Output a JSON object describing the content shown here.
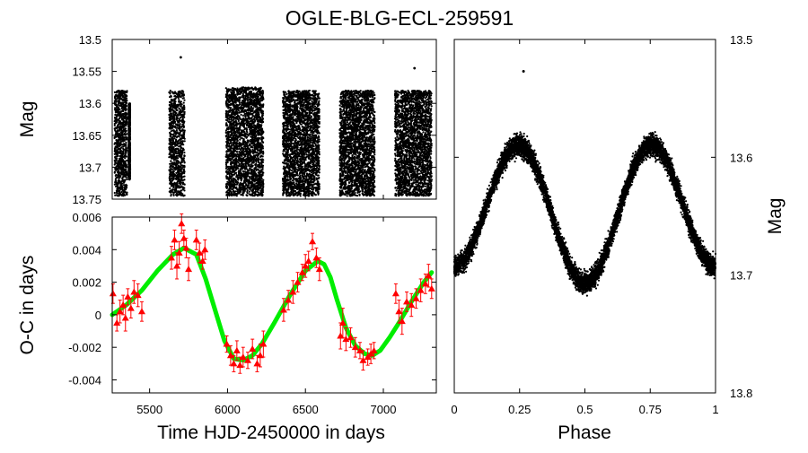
{
  "title": "OGLE-BLG-ECL-259591",
  "colors": {
    "data": "#000000",
    "oc_points": "#ff0000",
    "fit": "#00ee00",
    "axes": "#000000"
  },
  "chart_data": [
    {
      "type": "scatter",
      "name": "light-curve-time",
      "ylabel": "Mag",
      "xlim": [
        5260,
        7340
      ],
      "ylim": [
        13.5,
        13.75
      ],
      "y_reversed": true,
      "yticks": [
        "13.5",
        "13.55",
        "13.6",
        "13.65",
        "13.7",
        "13.75"
      ],
      "seasons": [
        {
          "x_range": [
            5275,
            5355
          ],
          "mag_range": [
            13.58,
            13.745
          ],
          "density": "sparse"
        },
        {
          "x_range": [
            5365,
            5375
          ],
          "mag_range": [
            13.6,
            13.72
          ],
          "density": "sparse"
        },
        {
          "x_range": [
            5625,
            5725
          ],
          "mag_range": [
            13.58,
            13.745
          ],
          "density": "sparse"
        },
        {
          "x_range": [
            5990,
            6230
          ],
          "mag_range": [
            13.575,
            13.745
          ],
          "density": "dense"
        },
        {
          "x_range": [
            6355,
            6590
          ],
          "mag_range": [
            13.58,
            13.745
          ],
          "density": "dense"
        },
        {
          "x_range": [
            6720,
            6945
          ],
          "mag_range": [
            13.58,
            13.745
          ],
          "density": "dense"
        },
        {
          "x_range": [
            7075,
            7310
          ],
          "mag_range": [
            13.58,
            13.745
          ],
          "density": "dense"
        }
      ],
      "outliers": [
        {
          "x": 5700,
          "mag": 13.528
        },
        {
          "x": 7200,
          "mag": 13.545
        }
      ]
    },
    {
      "type": "scatter",
      "name": "oc-diagram",
      "xlabel": "Time HJD-2450000 in days",
      "ylabel": "O-C in days",
      "xlim": [
        5260,
        7340
      ],
      "ylim": [
        -0.0048,
        0.006
      ],
      "xticks": [
        "5500",
        "6000",
        "6500",
        "7000"
      ],
      "yticks": [
        "-0.004",
        "-0.002",
        "0",
        "0.002",
        "0.004",
        "0.006"
      ],
      "fit_curve": {
        "x": [
          5260,
          5350,
          5450,
          5550,
          5650,
          5720,
          5800,
          5860,
          5920,
          5980,
          6040,
          6100,
          6160,
          6220,
          6300,
          6400,
          6500,
          6580,
          6620,
          6660,
          6700,
          6760,
          6820,
          6880,
          6930,
          6980,
          7040,
          7100,
          7180,
          7260,
          7310
        ],
        "y": [
          0.0,
          0.0006,
          0.0015,
          0.0027,
          0.0037,
          0.0041,
          0.0037,
          0.0022,
          0.0003,
          -0.0016,
          -0.0027,
          -0.0028,
          -0.0025,
          -0.0018,
          -0.0005,
          0.0012,
          0.0027,
          0.0033,
          0.0031,
          0.0023,
          0.001,
          -0.0008,
          -0.0019,
          -0.0024,
          -0.0025,
          -0.0022,
          -0.0014,
          -0.0005,
          0.0008,
          0.002,
          0.0026
        ]
      },
      "points": [
        {
          "x": 5265,
          "y": 0.0013,
          "err": 0.0006
        },
        {
          "x": 5290,
          "y": -0.0005,
          "err": 0.0005
        },
        {
          "x": 5310,
          "y": 0.0002,
          "err": 0.0007
        },
        {
          "x": 5330,
          "y": 0.0006,
          "err": 0.0006
        },
        {
          "x": 5345,
          "y": -0.0002,
          "err": 0.0008
        },
        {
          "x": 5360,
          "y": 0.0011,
          "err": 0.0005
        },
        {
          "x": 5380,
          "y": 0.0004,
          "err": 0.0006
        },
        {
          "x": 5400,
          "y": 0.0014,
          "err": 0.0007
        },
        {
          "x": 5425,
          "y": 0.0012,
          "err": 0.0007
        },
        {
          "x": 5450,
          "y": 0.0002,
          "err": 0.0006
        },
        {
          "x": 5640,
          "y": 0.0035,
          "err": 0.0007
        },
        {
          "x": 5660,
          "y": 0.0046,
          "err": 0.0006
        },
        {
          "x": 5675,
          "y": 0.003,
          "err": 0.0008
        },
        {
          "x": 5690,
          "y": 0.0038,
          "err": 0.0007
        },
        {
          "x": 5705,
          "y": 0.0056,
          "err": 0.0006
        },
        {
          "x": 5720,
          "y": 0.0047,
          "err": 0.0005
        },
        {
          "x": 5735,
          "y": 0.0041,
          "err": 0.0006
        },
        {
          "x": 5750,
          "y": 0.0028,
          "err": 0.0007
        },
        {
          "x": 5800,
          "y": 0.0046,
          "err": 0.0006
        },
        {
          "x": 5820,
          "y": 0.0038,
          "err": 0.0006
        },
        {
          "x": 5840,
          "y": 0.0033,
          "err": 0.0005
        },
        {
          "x": 5855,
          "y": 0.004,
          "err": 0.0006
        },
        {
          "x": 5995,
          "y": -0.0018,
          "err": 0.0005
        },
        {
          "x": 6020,
          "y": -0.0025,
          "err": 0.0006
        },
        {
          "x": 6040,
          "y": -0.003,
          "err": 0.0005
        },
        {
          "x": 6060,
          "y": -0.0022,
          "err": 0.0006
        },
        {
          "x": 6080,
          "y": -0.0031,
          "err": 0.0005
        },
        {
          "x": 6100,
          "y": -0.0026,
          "err": 0.0006
        },
        {
          "x": 6130,
          "y": -0.0028,
          "err": 0.0005
        },
        {
          "x": 6160,
          "y": -0.0021,
          "err": 0.0006
        },
        {
          "x": 6190,
          "y": -0.003,
          "err": 0.0005
        },
        {
          "x": 6210,
          "y": -0.0025,
          "err": 0.0007
        },
        {
          "x": 6230,
          "y": -0.0018,
          "err": 0.0008
        },
        {
          "x": 6360,
          "y": 0.0003,
          "err": 0.0007
        },
        {
          "x": 6390,
          "y": 0.0009,
          "err": 0.0006
        },
        {
          "x": 6420,
          "y": 0.0014,
          "err": 0.0007
        },
        {
          "x": 6450,
          "y": 0.002,
          "err": 0.0006
        },
        {
          "x": 6480,
          "y": 0.0026,
          "err": 0.0005
        },
        {
          "x": 6500,
          "y": 0.003,
          "err": 0.0007
        },
        {
          "x": 6520,
          "y": 0.0033,
          "err": 0.0006
        },
        {
          "x": 6545,
          "y": 0.0045,
          "err": 0.0005
        },
        {
          "x": 6570,
          "y": 0.0035,
          "err": 0.0006
        },
        {
          "x": 6590,
          "y": 0.0028,
          "err": 0.0007
        },
        {
          "x": 6725,
          "y": -0.0013,
          "err": 0.0008
        },
        {
          "x": 6740,
          "y": -0.0005,
          "err": 0.0009
        },
        {
          "x": 6760,
          "y": -0.0015,
          "err": 0.0007
        },
        {
          "x": 6790,
          "y": -0.0014,
          "err": 0.0006
        },
        {
          "x": 6820,
          "y": -0.002,
          "err": 0.0006
        },
        {
          "x": 6850,
          "y": -0.0022,
          "err": 0.0005
        },
        {
          "x": 6870,
          "y": -0.0028,
          "err": 0.0006
        },
        {
          "x": 6900,
          "y": -0.0026,
          "err": 0.0005
        },
        {
          "x": 6920,
          "y": -0.0024,
          "err": 0.0006
        },
        {
          "x": 6940,
          "y": -0.0022,
          "err": 0.0005
        },
        {
          "x": 7080,
          "y": 0.0013,
          "err": 0.0006
        },
        {
          "x": 7100,
          "y": 0.0002,
          "err": 0.0007
        },
        {
          "x": 7120,
          "y": -0.0004,
          "err": 0.0008
        },
        {
          "x": 7150,
          "y": 0.0008,
          "err": 0.0006
        },
        {
          "x": 7180,
          "y": 0.0006,
          "err": 0.0007
        },
        {
          "x": 7210,
          "y": 0.001,
          "err": 0.0006
        },
        {
          "x": 7240,
          "y": 0.0015,
          "err": 0.0007
        },
        {
          "x": 7270,
          "y": 0.0019,
          "err": 0.0006
        },
        {
          "x": 7290,
          "y": 0.0024,
          "err": 0.0007
        },
        {
          "x": 7310,
          "y": 0.0016,
          "err": 0.0006
        }
      ]
    },
    {
      "type": "scatter",
      "name": "phased-light-curve",
      "xlabel": "Phase",
      "ylabel": "Mag",
      "xlim": [
        0,
        1
      ],
      "ylim": [
        13.5,
        13.8
      ],
      "y_reversed": true,
      "xticks": [
        "0",
        "0.25",
        "0.5",
        "0.75",
        "1"
      ],
      "yticks": [
        "13.5",
        "13.6",
        "13.7",
        "13.8"
      ],
      "model": {
        "mean_mag": 13.645,
        "amp_cos2": 0.055,
        "amp_cos1": -0.02,
        "scatter": 0.006
      },
      "outliers": [
        {
          "x": 0.265,
          "mag": 13.527
        },
        {
          "x": 0.5,
          "mag": 13.71
        }
      ]
    }
  ]
}
